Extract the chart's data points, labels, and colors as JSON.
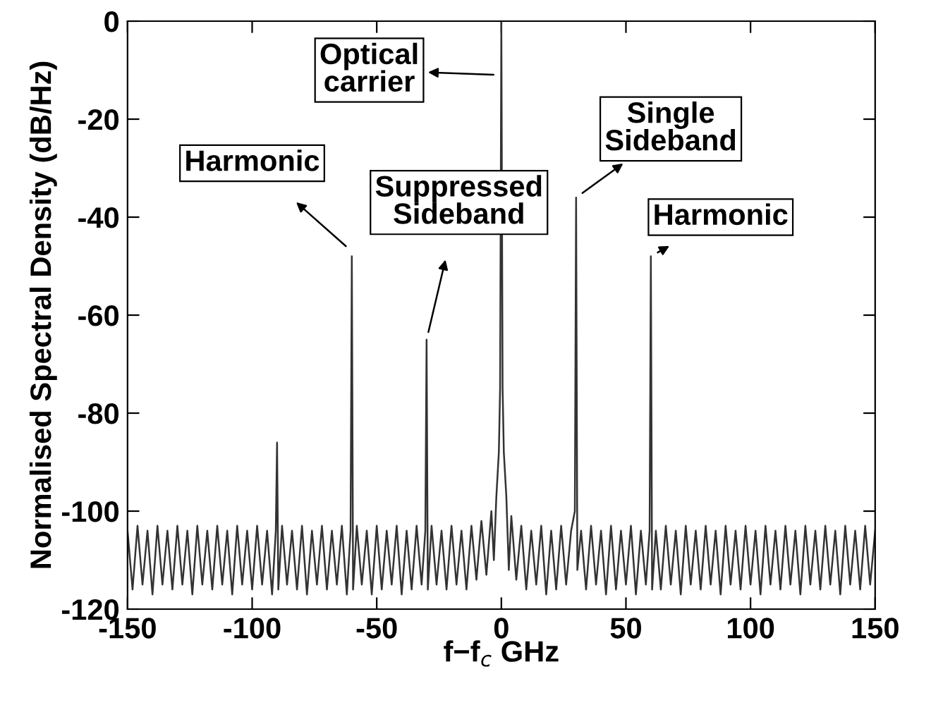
{
  "chart_data": {
    "type": "line",
    "xlabel": "f−f$_{c}$ GHz",
    "ylabel": "Normalised Spectral Density (dB/Hz)",
    "xlim": [
      -150,
      150
    ],
    "ylim": [
      -120,
      0
    ],
    "xticks": [
      -150,
      -100,
      -50,
      0,
      50,
      100,
      150
    ],
    "yticks": [
      -120,
      -100,
      -80,
      -60,
      -40,
      -20,
      0
    ],
    "grid": false,
    "marker": "none",
    "line_style": "solid",
    "series": [
      {
        "color": "#333333",
        "x": [
          -150,
          -148,
          -146,
          -144,
          -142,
          -140,
          -138,
          -136,
          -134,
          -132,
          -130,
          -128,
          -126,
          -124,
          -122,
          -120,
          -118,
          -116,
          -114,
          -112,
          -110,
          -108,
          -106,
          -104,
          -102,
          -100,
          -98,
          -96,
          -94,
          -92,
          -90.5,
          -90,
          -89.5,
          -88,
          -86,
          -84,
          -82,
          -80,
          -78,
          -76,
          -74,
          -72,
          -70,
          -68,
          -66,
          -64,
          -62,
          -60.5,
          -60,
          -59.5,
          -58,
          -56,
          -54,
          -52,
          -50,
          -48,
          -46,
          -44,
          -42,
          -40,
          -38,
          -36,
          -34,
          -32,
          -30.5,
          -30,
          -29.5,
          -28,
          -26,
          -24,
          -22,
          -20,
          -18,
          -16,
          -14,
          -12,
          -10,
          -8,
          -6,
          -4,
          -3,
          -2,
          -1,
          -0.5,
          0,
          0.5,
          1,
          2,
          3,
          4,
          6,
          8,
          10,
          12,
          14,
          16,
          18,
          20,
          22,
          24,
          26,
          28,
          29.5,
          30,
          30.5,
          32,
          34,
          36,
          38,
          40,
          42,
          44,
          46,
          48,
          50,
          52,
          54,
          56,
          58,
          59.5,
          60,
          60.5,
          62,
          64,
          66,
          68,
          70,
          72,
          74,
          76,
          78,
          80,
          82,
          84,
          86,
          88,
          90,
          92,
          94,
          96,
          98,
          100,
          102,
          104,
          106,
          108,
          110,
          112,
          114,
          116,
          118,
          120,
          122,
          124,
          126,
          128,
          130,
          132,
          134,
          136,
          138,
          140,
          142,
          144,
          146,
          148,
          150
        ],
        "values": [
          -104,
          -116,
          -103,
          -115,
          -104,
          -117,
          -103,
          -115,
          -104,
          -116,
          -103,
          -115,
          -104,
          -117,
          -103,
          -115,
          -104,
          -116,
          -103,
          -115,
          -104,
          -117,
          -103,
          -115,
          -104,
          -116,
          -103,
          -115,
          -104,
          -117,
          -104,
          -86,
          -116,
          -103,
          -115,
          -104,
          -116,
          -103,
          -117,
          -104,
          -115,
          -103,
          -116,
          -104,
          -115,
          -103,
          -117,
          -104,
          -48,
          -116,
          -103,
          -115,
          -104,
          -117,
          -103,
          -116,
          -104,
          -115,
          -103,
          -117,
          -104,
          -116,
          -103,
          -115,
          -104,
          -65,
          -116,
          -103,
          -115,
          -104,
          -116,
          -103,
          -115,
          -104,
          -116,
          -103,
          -114,
          -102,
          -113,
          -100,
          -110,
          -97,
          -88,
          -75,
          0,
          -75,
          -88,
          -97,
          -112,
          -101,
          -114,
          -103,
          -116,
          -104,
          -115,
          -103,
          -117,
          -104,
          -116,
          -103,
          -115,
          -104,
          -100,
          -36,
          -112,
          -104,
          -116,
          -103,
          -115,
          -104,
          -117,
          -103,
          -116,
          -104,
          -115,
          -103,
          -117,
          -104,
          -115,
          -104,
          -48,
          -116,
          -104,
          -116,
          -103,
          -115,
          -104,
          -117,
          -103,
          -115,
          -104,
          -116,
          -103,
          -115,
          -104,
          -117,
          -103,
          -115,
          -104,
          -116,
          -103,
          -115,
          -104,
          -117,
          -103,
          -115,
          -104,
          -116,
          -103,
          -115,
          -104,
          -117,
          -103,
          -115,
          -104,
          -116,
          -103,
          -115,
          -104,
          -117,
          -103,
          -115,
          -104,
          -116,
          -103,
          -115,
          -104
        ]
      }
    ],
    "annotations": [
      {
        "text": "Optical\ncarrier",
        "x": 0,
        "y": -11
      },
      {
        "text": "Harmonic",
        "x": -60,
        "y": -47
      },
      {
        "text": "Suppressed\nSideband",
        "x": -30,
        "y": -65
      },
      {
        "text": "Single\nSideband",
        "x": 30,
        "y": -36
      },
      {
        "text": "Harmonic",
        "x": 60,
        "y": -48
      }
    ]
  }
}
